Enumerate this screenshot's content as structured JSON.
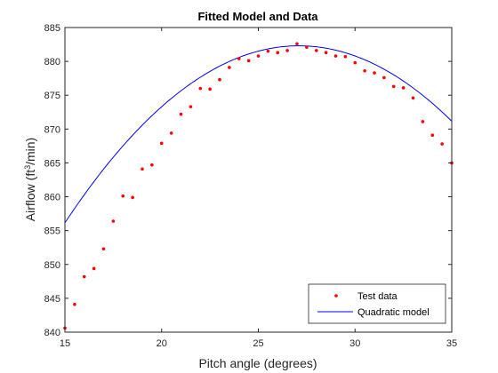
{
  "chart_data": {
    "type": "scatter",
    "title": "Fitted Model and Data",
    "xlabel": "Pitch angle (degrees)",
    "ylabel_main": "Airflow (ft",
    "ylabel_sup": "3",
    "ylabel_end": "/min)",
    "xlim": [
      15,
      35
    ],
    "ylim": [
      840,
      885
    ],
    "xticks": [
      15,
      20,
      25,
      30,
      35
    ],
    "yticks": [
      840,
      845,
      850,
      855,
      860,
      865,
      870,
      875,
      880,
      885
    ],
    "legend_position": "bottom-right",
    "series": [
      {
        "name": "Test data",
        "kind": "markers",
        "color": "#ff0000",
        "x": [
          15,
          15.5,
          16,
          16.5,
          17,
          17.5,
          18,
          18.5,
          19,
          19.5,
          20,
          20.5,
          21,
          21.5,
          22,
          22.5,
          23,
          23.5,
          24,
          24.5,
          25,
          25.5,
          26,
          26.5,
          27,
          27.5,
          28,
          28.5,
          29,
          29.5,
          30,
          30.5,
          31,
          31.5,
          32,
          32.5,
          33,
          33.5,
          34,
          34.5,
          35
        ],
        "y": [
          840.6,
          844.1,
          848.2,
          849.4,
          852.3,
          856.4,
          860.1,
          859.9,
          864.1,
          864.7,
          867.9,
          869.4,
          872.2,
          873.3,
          876.0,
          875.9,
          877.3,
          879.1,
          880.4,
          880.1,
          880.8,
          881.5,
          881.3,
          881.6,
          882.6,
          882.1,
          881.6,
          881.3,
          880.8,
          880.7,
          879.8,
          878.6,
          878.3,
          877.6,
          876.3,
          876.1,
          874.6,
          871.1,
          869.1,
          867.8,
          865.0
        ]
      },
      {
        "name": "Quadratic model",
        "kind": "line",
        "color": "#0000ff",
        "coefficients": {
          "a": -0.1786,
          "h": 27.1,
          "k": 882.3
        }
      }
    ]
  }
}
